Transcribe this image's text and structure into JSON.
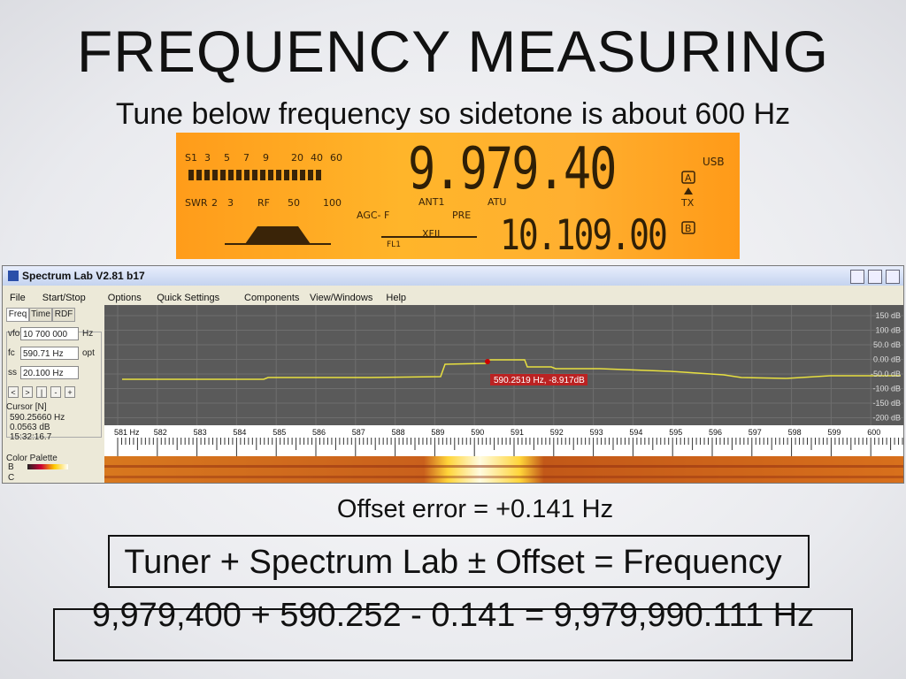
{
  "title": "FREQUENCY MEASURING",
  "subtitle": "Tune below frequency so sidetone is about 600 Hz",
  "radio": {
    "s_scale": [
      "S1",
      "3",
      "5",
      "7",
      "9",
      "20",
      "40",
      "60"
    ],
    "swr_scale": [
      "SWR",
      "2",
      "3",
      "RF",
      "50",
      "100"
    ],
    "main_freq": "9.979.40",
    "sub_freq": "10.109.00",
    "mode": "USB",
    "vfo_a": "A",
    "tx": "TX",
    "vfo_b": "B",
    "ant": "ANT1",
    "atu": "ATU",
    "agc": "AGC- F",
    "pre": "PRE",
    "xfil": "XFIL",
    "fl": "FL1"
  },
  "spectrum_lab": {
    "window_title": "Spectrum Lab V2.81 b17",
    "menu": [
      "File",
      "Start/Stop",
      "Options",
      "Quick Settings",
      "Components",
      "View/Windows",
      "Help"
    ],
    "tabs": [
      "Freq",
      "Time",
      "RDF"
    ],
    "fields": [
      {
        "label": "vfo",
        "value": "10 700 000",
        "unit": "Hz"
      },
      {
        "label": "fc",
        "value": "590.71 Hz",
        "unit": "opt"
      },
      {
        "label": "ss",
        "value": "20.100 Hz",
        "unit": ""
      }
    ],
    "buttons": [
      "<",
      ">",
      "|",
      "-",
      "+"
    ],
    "cursor_title": "Cursor [N]",
    "cursor_info": [
      "590.25660 Hz",
      "0.0563 dB",
      "15:32:16.7"
    ],
    "palette_title": "Color Palette",
    "palette_rows": [
      "B",
      "C"
    ],
    "db_labels": [
      "150 dB",
      "100 dB",
      "50.0 dB",
      "0.00 dB",
      "-50.0 dB",
      "-100 dB",
      "-150 dB",
      "-200 dB"
    ],
    "freq_labels": [
      "581 Hz",
      "582",
      "583",
      "584",
      "585",
      "586",
      "587",
      "588",
      "589",
      "590",
      "591",
      "592",
      "593",
      "594",
      "595",
      "596",
      "597",
      "598",
      "599",
      "600"
    ],
    "marker_readout": "590.2519 Hz, -8.917dB"
  },
  "offset_error": "Offset error = +0.141 Hz",
  "formula": {
    "line1": "Tuner + Spectrum Lab ± Offset = Frequency",
    "line2": "9,979,400 + 590.252 - 0.141 = 9,979,990.111 Hz"
  }
}
